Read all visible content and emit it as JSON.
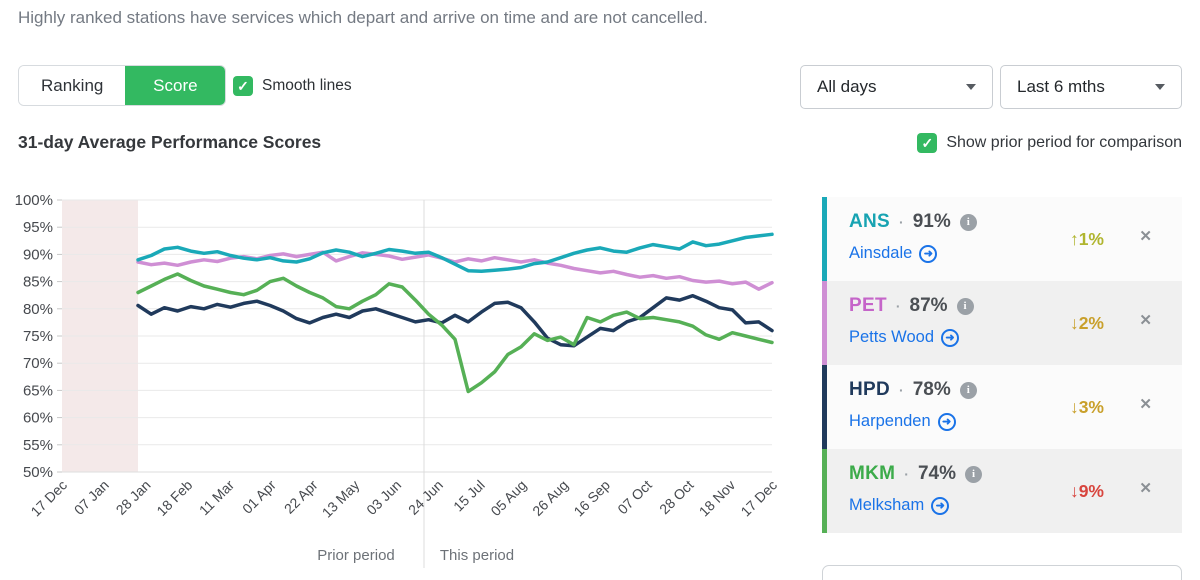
{
  "header": {
    "description": "Highly ranked stations have services which depart and arrive on time and are not cancelled."
  },
  "controls": {
    "view_toggle": {
      "options": [
        "Ranking",
        "Score"
      ],
      "selected": "Score"
    },
    "smooth_lines": {
      "label": "Smooth lines",
      "checked": true,
      "check_glyph": "✓"
    },
    "day_filter": {
      "value": "All days"
    },
    "range_filter": {
      "value": "Last 6 mths"
    },
    "comparison": {
      "label": "Show prior period for comparison",
      "checked": true,
      "check_glyph": "✓"
    }
  },
  "chart": {
    "title": "31-day Average Performance Scores"
  },
  "chart_data": {
    "type": "line",
    "title": "31-day Average Performance Scores",
    "ylim": [
      50,
      100
    ],
    "y_tick_labels": [
      "100%",
      "95%",
      "90%",
      "85%",
      "80%",
      "75%",
      "70%",
      "65%",
      "60%",
      "55%",
      "50%"
    ],
    "x_tick_labels": [
      "17 Dec",
      "07 Jan",
      "28 Jan",
      "18 Feb",
      "11 Mar",
      "01 Apr",
      "22 Apr",
      "13 May",
      "03 Jun",
      "24 Jun",
      "15 Jul",
      "05 Aug",
      "26 Aug",
      "16 Sep",
      "07 Oct",
      "28 Oct",
      "18 Nov",
      "17 Dec"
    ],
    "period_labels": {
      "prior": "Prior period",
      "this": "This period"
    },
    "grid": true,
    "colors": {
      "grid": "#e9e9e9",
      "axis": "#dedede",
      "divider": "#dcdcdc",
      "shaded_region": "#f4e9e9",
      "tick_text": "#46494e"
    },
    "series": [
      {
        "name": "ANS",
        "station": "Ainsdale",
        "color": "#1aa9b8",
        "values": [
          89.0,
          89.8,
          91.0,
          91.3,
          90.6,
          90.2,
          90.5,
          89.8,
          89.3,
          89.0,
          89.4,
          88.8,
          88.6,
          89.2,
          90.3,
          90.8,
          90.4,
          89.6,
          90.2,
          90.9,
          90.6,
          90.2,
          90.4,
          89.4,
          88.2,
          87.0,
          86.9,
          87.1,
          87.3,
          87.6,
          88.3,
          88.6,
          89.4,
          90.2,
          90.8,
          91.2,
          90.6,
          90.4,
          91.2,
          91.8,
          91.4,
          91.0,
          92.3,
          91.6,
          91.9,
          92.5,
          93.1,
          93.4,
          93.7
        ]
      },
      {
        "name": "PET",
        "station": "Petts Wood",
        "color": "#cf8fd4",
        "values": [
          88.6,
          88.1,
          88.4,
          88.0,
          88.6,
          89.0,
          88.7,
          89.3,
          89.6,
          89.2,
          89.8,
          90.1,
          89.6,
          90.0,
          90.4,
          88.8,
          89.6,
          90.3,
          90.0,
          89.7,
          89.1,
          89.5,
          89.9,
          89.3,
          88.6,
          89.2,
          88.8,
          89.4,
          89.0,
          88.6,
          89.0,
          88.4,
          88.0,
          87.4,
          87.0,
          86.6,
          86.9,
          86.3,
          85.8,
          86.1,
          85.6,
          85.9,
          85.2,
          84.9,
          85.1,
          84.6,
          84.9,
          83.6,
          84.8
        ]
      },
      {
        "name": "HPD",
        "station": "Harpenden",
        "color": "#203a5c",
        "values": [
          80.6,
          79.0,
          80.2,
          79.6,
          80.4,
          80.0,
          80.8,
          80.3,
          81.0,
          81.4,
          80.6,
          79.6,
          78.2,
          77.4,
          78.4,
          79.0,
          78.4,
          79.6,
          80.0,
          79.2,
          78.4,
          77.6,
          78.0,
          77.4,
          78.8,
          77.6,
          79.4,
          81.0,
          81.2,
          80.2,
          77.6,
          74.6,
          73.4,
          73.2,
          74.8,
          76.4,
          76.0,
          77.6,
          78.4,
          80.2,
          82.0,
          81.6,
          82.4,
          81.4,
          80.2,
          79.8,
          77.4,
          77.6,
          76.0
        ]
      },
      {
        "name": "MKM",
        "station": "Melksham",
        "color": "#56b056",
        "values": [
          83.0,
          84.2,
          85.4,
          86.4,
          85.2,
          84.2,
          83.6,
          83.0,
          82.6,
          83.4,
          85.0,
          85.6,
          84.2,
          83.0,
          82.0,
          80.4,
          80.0,
          81.4,
          82.6,
          84.6,
          84.0,
          81.6,
          79.0,
          77.0,
          74.4,
          64.8,
          66.4,
          68.4,
          71.6,
          73.0,
          75.4,
          74.2,
          74.8,
          73.4,
          78.4,
          77.6,
          78.8,
          79.4,
          78.2,
          78.4,
          78.0,
          77.6,
          76.8,
          75.2,
          74.4,
          75.6,
          75.0,
          74.4,
          73.8
        ]
      }
    ]
  },
  "stations": [
    {
      "code": "ANS",
      "separator": "·",
      "score": "91%",
      "info": "i",
      "name": "Ainsdale",
      "arrow": "➜",
      "change": "↑1%",
      "change_color": "#b0b52f",
      "color": "#1aa9b8",
      "code_color": "#17a3b2",
      "close": "✕"
    },
    {
      "code": "PET",
      "separator": "·",
      "score": "87%",
      "info": "i",
      "name": "Petts Wood",
      "arrow": "➜",
      "change": "↓2%",
      "change_color": "#c9a02b",
      "color": "#cf8fd4",
      "code_color": "#c565c9",
      "close": "✕"
    },
    {
      "code": "HPD",
      "separator": "·",
      "score": "78%",
      "info": "i",
      "name": "Harpenden",
      "arrow": "➜",
      "change": "↓3%",
      "change_color": "#c9a02b",
      "color": "#203a5c",
      "code_color": "#203a5c",
      "close": "✕"
    },
    {
      "code": "MKM",
      "separator": "·",
      "score": "74%",
      "info": "i",
      "name": "Melksham",
      "arrow": "➜",
      "change": "↓9%",
      "change_color": "#d8453e",
      "color": "#56b056",
      "code_color": "#3cab4a",
      "close": "✕"
    }
  ]
}
